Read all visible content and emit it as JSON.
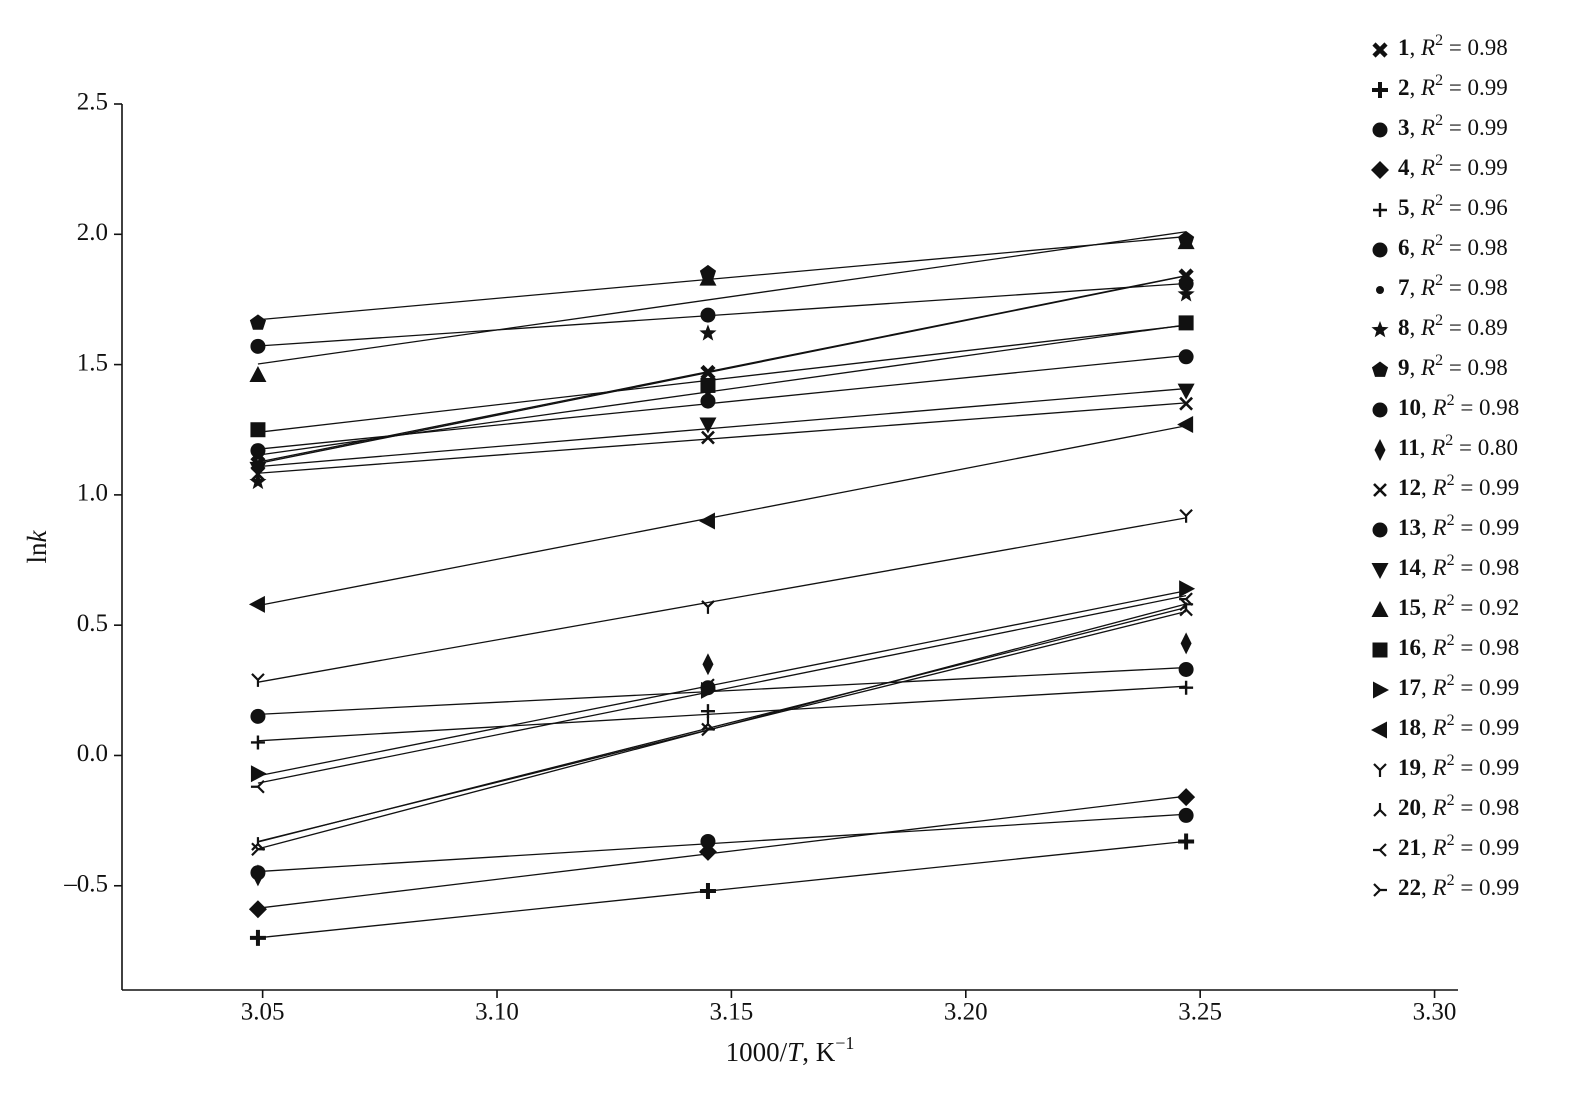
{
  "chart_data": {
    "type": "scatter",
    "x_label": {
      "prefix": "1000/",
      "var": "T",
      "unit": ", K",
      "exponent": "−1"
    },
    "y_label": {
      "prefix": "ln",
      "var": "k"
    },
    "legend_stat": {
      "prefix": ", ",
      "symbol": "R",
      "exponent": "2",
      "equals": " = "
    },
    "x": [
      3.049,
      3.145,
      3.247
    ],
    "xlim": [
      3.02,
      3.305
    ],
    "xticks": [
      3.05,
      {
        "value": 3.1,
        "label": "3.10"
      },
      3.15,
      {
        "value": 3.2,
        "label": "3.20"
      },
      3.25,
      {
        "value": 3.3,
        "label": "3.30"
      }
    ],
    "ylim": [
      -0.9,
      2.5
    ],
    "yticks": [
      {
        "value": -0.5,
        "label": "–0.5"
      },
      {
        "value": 0,
        "label": "0.0"
      },
      0.5,
      {
        "value": 1,
        "label": "1.0"
      },
      1.5,
      {
        "value": 2,
        "label": "2.0"
      },
      2.5
    ],
    "fit_lines": true,
    "color": "#111111",
    "series": [
      {
        "name": "1",
        "r2": "0.98",
        "marker": "x-bold",
        "values": [
          1.12,
          1.47,
          1.84
        ]
      },
      {
        "name": "2",
        "r2": "0.99",
        "marker": "plus-bold",
        "values": [
          -0.7,
          -0.52,
          -0.33
        ]
      },
      {
        "name": "3",
        "r2": "0.99",
        "marker": "circle",
        "values": [
          1.57,
          1.69,
          1.81
        ]
      },
      {
        "name": "4",
        "r2": "0.99",
        "marker": "diamond",
        "values": [
          -0.59,
          -0.37,
          -0.16
        ]
      },
      {
        "name": "5",
        "r2": "0.96",
        "marker": "plus",
        "values": [
          0.05,
          0.17,
          0.26
        ]
      },
      {
        "name": "6",
        "r2": "0.98",
        "marker": "circle",
        "values": [
          1.17,
          1.36,
          1.53
        ]
      },
      {
        "name": "7",
        "r2": "0.98",
        "marker": "dot",
        "values": [
          1.15,
          1.4,
          1.65
        ]
      },
      {
        "name": "8",
        "r2": "0.89",
        "marker": "star",
        "values": [
          1.05,
          1.62,
          1.77
        ]
      },
      {
        "name": "9",
        "r2": "0.98",
        "marker": "pentagon",
        "values": [
          1.66,
          1.85,
          1.98
        ]
      },
      {
        "name": "10",
        "r2": "0.98",
        "marker": "circle",
        "values": [
          0.15,
          0.26,
          0.33
        ]
      },
      {
        "name": "11",
        "r2": "0.80",
        "marker": "diamond-thin",
        "values": [
          -0.46,
          0.35,
          0.43
        ]
      },
      {
        "name": "12",
        "r2": "0.99",
        "marker": "x",
        "values": [
          1.08,
          1.22,
          1.35
        ]
      },
      {
        "name": "13",
        "r2": "0.99",
        "marker": "circle",
        "values": [
          -0.45,
          -0.33,
          -0.23
        ]
      },
      {
        "name": "14",
        "r2": "0.98",
        "marker": "tri-down",
        "values": [
          1.1,
          1.27,
          1.4
        ]
      },
      {
        "name": "15",
        "r2": "0.92",
        "marker": "tri-up",
        "values": [
          1.46,
          1.83,
          1.97
        ]
      },
      {
        "name": "16",
        "r2": "0.98",
        "marker": "square",
        "values": [
          1.25,
          1.42,
          1.66
        ]
      },
      {
        "name": "17",
        "r2": "0.99",
        "marker": "tri-right",
        "values": [
          -0.07,
          0.25,
          0.64
        ]
      },
      {
        "name": "18",
        "r2": "0.99",
        "marker": "tri-left",
        "values": [
          0.58,
          0.9,
          1.27
        ]
      },
      {
        "name": "19",
        "r2": "0.99",
        "marker": "y-down",
        "values": [
          0.29,
          0.57,
          0.92
        ]
      },
      {
        "name": "20",
        "r2": "0.98",
        "marker": "y-up",
        "values": [
          -0.34,
          0.12,
          0.56
        ]
      },
      {
        "name": "21",
        "r2": "0.99",
        "marker": "y-left",
        "values": [
          -0.12,
          0.27,
          0.6
        ]
      },
      {
        "name": "22",
        "r2": "0.99",
        "marker": "y-right",
        "values": [
          -0.36,
          0.1,
          0.58
        ]
      }
    ]
  }
}
